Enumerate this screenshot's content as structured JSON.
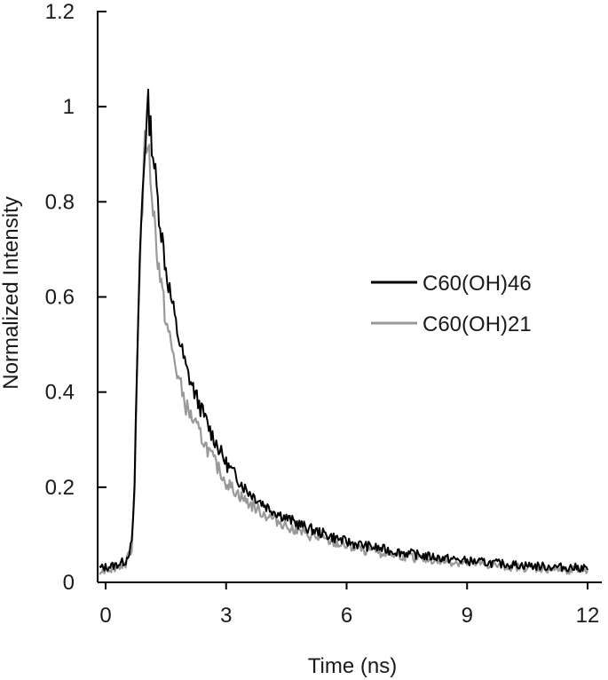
{
  "chart_data": {
    "type": "line",
    "title": "",
    "xlabel": "Time (ns)",
    "ylabel": "Normalized Intensity",
    "xlim": [
      0,
      12
    ],
    "ylim": [
      0,
      1.2
    ],
    "x_ticks": [
      "0",
      "3",
      "6",
      "9",
      "12"
    ],
    "y_ticks": [
      "0",
      "0.2",
      "0.4",
      "0.6",
      "0.8",
      "1",
      "1.2"
    ],
    "grid": false,
    "legend_position": "right",
    "series": [
      {
        "name": "C60(OH)46",
        "color": "#000000",
        "points": [
          [
            -0.15,
            0.03
          ],
          [
            0.2,
            0.035
          ],
          [
            0.5,
            0.045
          ],
          [
            0.65,
            0.08
          ],
          [
            0.72,
            0.2
          ],
          [
            0.78,
            0.45
          ],
          [
            0.85,
            0.68
          ],
          [
            0.92,
            0.82
          ],
          [
            1.0,
            0.95
          ],
          [
            1.06,
            1.0
          ],
          [
            1.15,
            0.93
          ],
          [
            1.3,
            0.8
          ],
          [
            1.5,
            0.66
          ],
          [
            1.75,
            0.54
          ],
          [
            2.0,
            0.45
          ],
          [
            2.3,
            0.38
          ],
          [
            2.6,
            0.32
          ],
          [
            3.0,
            0.25
          ],
          [
            3.5,
            0.195
          ],
          [
            4.0,
            0.16
          ],
          [
            4.5,
            0.135
          ],
          [
            5.0,
            0.115
          ],
          [
            5.5,
            0.1
          ],
          [
            6.0,
            0.085
          ],
          [
            7.0,
            0.068
          ],
          [
            8.0,
            0.055
          ],
          [
            9.0,
            0.045
          ],
          [
            10.0,
            0.038
          ],
          [
            11.0,
            0.033
          ],
          [
            12.0,
            0.03
          ]
        ]
      },
      {
        "name": "C60(OH)21",
        "color": "#999999",
        "points": [
          [
            -0.15,
            0.025
          ],
          [
            0.2,
            0.03
          ],
          [
            0.5,
            0.04
          ],
          [
            0.65,
            0.075
          ],
          [
            0.72,
            0.19
          ],
          [
            0.78,
            0.44
          ],
          [
            0.85,
            0.67
          ],
          [
            0.92,
            0.8
          ],
          [
            0.98,
            0.92
          ],
          [
            1.05,
            0.93
          ],
          [
            1.15,
            0.82
          ],
          [
            1.3,
            0.68
          ],
          [
            1.5,
            0.55
          ],
          [
            1.75,
            0.45
          ],
          [
            2.0,
            0.37
          ],
          [
            2.3,
            0.32
          ],
          [
            2.6,
            0.27
          ],
          [
            3.0,
            0.21
          ],
          [
            3.5,
            0.17
          ],
          [
            4.0,
            0.14
          ],
          [
            4.5,
            0.12
          ],
          [
            5.0,
            0.1
          ],
          [
            5.5,
            0.088
          ],
          [
            6.0,
            0.075
          ],
          [
            7.0,
            0.06
          ],
          [
            8.0,
            0.048
          ],
          [
            9.0,
            0.04
          ],
          [
            10.0,
            0.033
          ],
          [
            11.0,
            0.028
          ],
          [
            12.0,
            0.025
          ]
        ]
      }
    ]
  }
}
